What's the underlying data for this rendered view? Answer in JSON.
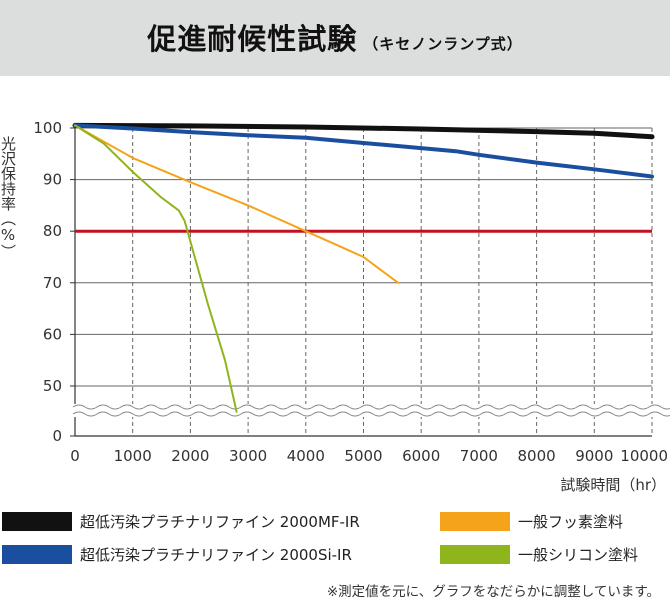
{
  "header": {
    "title": "促進耐候性試験",
    "subtitle": "（キセノンランプ式）"
  },
  "footnote": "※測定値を元に、グラフをなだらかに調整しています。",
  "chart_data": {
    "type": "line",
    "title": "促進耐候性試験（キセノンランプ式）",
    "xlabel": "試験時間（hr）",
    "ylabel": "光沢保持率（%）",
    "xlim": [
      0,
      10000
    ],
    "x_ticks": [
      "0",
      "1000",
      "2000",
      "3000",
      "4000",
      "5000",
      "6000",
      "7000",
      "8000",
      "9000",
      "10000"
    ],
    "y_ticks": [
      "100",
      "90",
      "80",
      "70",
      "60",
      "50",
      "0"
    ],
    "y_axis_break": "between 50 and 0",
    "grid": "vertical dashed, horizontal solid",
    "reference_line": {
      "y": 80,
      "color": "#c1121f"
    },
    "legend_position": "bottom",
    "series": [
      {
        "name": "超低汚染プラチナリファイン 2000MF-IR",
        "color": "#111111",
        "x": [
          0,
          2000,
          4000,
          6000,
          8000,
          9000,
          10000
        ],
        "y": [
          100.5,
          100.4,
          100.2,
          99.8,
          99.3,
          99.0,
          98.3
        ]
      },
      {
        "name": "超低汚染プラチナリファイン 2000Si-IR",
        "color": "#1a4fa0",
        "x": [
          0,
          1000,
          2000,
          3000,
          4000,
          5000,
          6000,
          6600,
          7000,
          8000,
          9000,
          10000
        ],
        "y": [
          100.5,
          99.9,
          99.2,
          98.6,
          98.1,
          97.1,
          96.1,
          95.5,
          94.8,
          93.3,
          92.0,
          90.6
        ]
      },
      {
        "name": "一般フッ素塗料",
        "color": "#f5a31a",
        "x": [
          0,
          1000,
          2000,
          3000,
          4000,
          4500,
          5000,
          5300,
          5600
        ],
        "y": [
          100.5,
          94.2,
          89.5,
          85.0,
          80.0,
          77.5,
          75.0,
          72.5,
          70.0
        ]
      },
      {
        "name": "一般シリコン塗料",
        "color": "#8fb51c",
        "x": [
          0,
          500,
          1000,
          1500,
          1800,
          1900,
          2000,
          2300,
          2600,
          2800
        ],
        "y": [
          100.5,
          97.0,
          91.5,
          86.5,
          84.0,
          82.0,
          78.0,
          66.0,
          55.0,
          45.0
        ]
      }
    ]
  }
}
